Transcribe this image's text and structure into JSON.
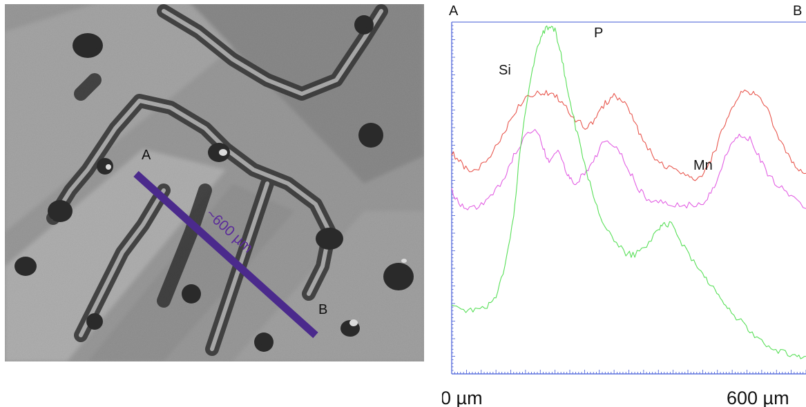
{
  "micrograph": {
    "point_a": "A",
    "point_b": "B",
    "scan_label": "~600 µm",
    "line_color": "#4b2a8c"
  },
  "chart_data": {
    "type": "line",
    "xlabel_start": "0 µm",
    "xlabel_end": "600 µm",
    "x_unit": "µm",
    "xlim": [
      0,
      600
    ],
    "ylim": [
      0,
      100
    ],
    "endpoint_left": "A",
    "endpoint_right": "B",
    "axis_color": "#3f57d6",
    "grid": false,
    "series": [
      {
        "name": "Si",
        "color": "#e8564d",
        "x": [
          0,
          15,
          30,
          50,
          70,
          90,
          105,
          125,
          145,
          160,
          175,
          190,
          210,
          230,
          245,
          260,
          275,
          290,
          305,
          320,
          340,
          360,
          380,
          400,
          415,
          430,
          445,
          460,
          475,
          490,
          505,
          520,
          535,
          550,
          570,
          585,
          600
        ],
        "values": [
          63,
          60,
          57,
          59,
          63,
          69,
          74,
          79,
          80,
          80,
          79,
          77,
          72,
          70,
          73,
          77,
          79,
          78,
          73,
          68,
          62,
          59,
          58,
          56,
          55,
          58,
          63,
          70,
          76,
          80,
          80,
          79,
          75,
          68,
          62,
          58,
          57
        ]
      },
      {
        "name": "Mn",
        "color": "#e25fe3",
        "x": [
          0,
          15,
          30,
          50,
          70,
          90,
          105,
          125,
          145,
          155,
          165,
          180,
          190,
          200,
          210,
          225,
          240,
          255,
          270,
          285,
          300,
          315,
          330,
          350,
          370,
          390,
          410,
          430,
          445,
          460,
          475,
          490,
          505,
          520,
          535,
          555,
          575,
          600
        ],
        "values": [
          52,
          48,
          47,
          48,
          51,
          56,
          62,
          68,
          69,
          64,
          60,
          63,
          59,
          56,
          54,
          57,
          61,
          65,
          66,
          63,
          58,
          53,
          50,
          49,
          48,
          48,
          48,
          49,
          53,
          60,
          66,
          68,
          67,
          62,
          57,
          53,
          51,
          47
        ]
      },
      {
        "name": "P",
        "color": "#57df57",
        "x": [
          0,
          20,
          40,
          60,
          75,
          90,
          105,
          115,
          125,
          135,
          145,
          155,
          165,
          175,
          185,
          195,
          210,
          225,
          240,
          255,
          275,
          295,
          310,
          330,
          350,
          360,
          375,
          390,
          410,
          425,
          440,
          455,
          470,
          490,
          505,
          525,
          545,
          565,
          585,
          600
        ],
        "values": [
          19,
          18,
          18,
          19,
          22,
          30,
          45,
          62,
          75,
          85,
          93,
          97,
          99,
          98,
          91,
          82,
          70,
          60,
          50,
          43,
          38,
          34,
          34,
          36,
          41,
          43,
          42,
          37,
          32,
          28,
          25,
          22,
          18,
          15,
          12,
          9,
          7,
          6,
          5,
          5
        ]
      }
    ]
  }
}
